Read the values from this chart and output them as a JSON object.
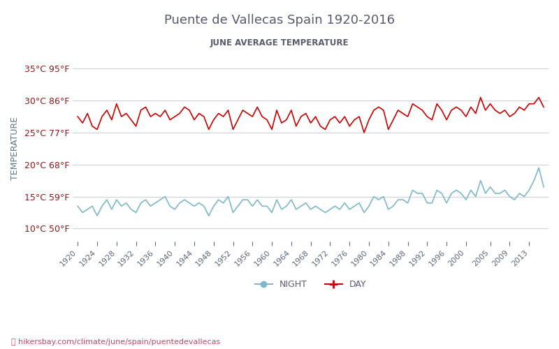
{
  "title": "Puente de Vallecas Spain 1920-2016",
  "subtitle": "JUNE AVERAGE TEMPERATURE",
  "ylabel": "TEMPERATURE",
  "footer": "hikersbay.com/climate/june/spain/puentedevallecas",
  "ylim": [
    8,
    37
  ],
  "yticks": [
    10,
    15,
    20,
    25,
    30,
    35
  ],
  "ytick_labels": [
    "10°C 50°F",
    "15°C 59°F",
    "20°C 68°F",
    "25°C 77°F",
    "30°C 86°F",
    "35°C 95°F"
  ],
  "years": [
    1920,
    1921,
    1922,
    1923,
    1924,
    1925,
    1926,
    1927,
    1928,
    1929,
    1930,
    1931,
    1932,
    1933,
    1934,
    1935,
    1936,
    1937,
    1938,
    1939,
    1940,
    1941,
    1942,
    1943,
    1944,
    1945,
    1946,
    1947,
    1948,
    1949,
    1950,
    1951,
    1952,
    1953,
    1954,
    1955,
    1956,
    1957,
    1958,
    1959,
    1960,
    1961,
    1962,
    1963,
    1964,
    1965,
    1966,
    1967,
    1968,
    1969,
    1970,
    1971,
    1972,
    1973,
    1974,
    1975,
    1976,
    1977,
    1978,
    1979,
    1980,
    1981,
    1982,
    1983,
    1984,
    1985,
    1986,
    1987,
    1988,
    1989,
    1990,
    1991,
    1992,
    1993,
    1994,
    1995,
    1996,
    1997,
    1998,
    1999,
    2000,
    2001,
    2002,
    2003,
    2004,
    2005,
    2006,
    2007,
    2008,
    2009,
    2010,
    2011,
    2012,
    2013,
    2014,
    2015,
    2016
  ],
  "day_temps": [
    27.5,
    26.5,
    28.0,
    26.0,
    25.5,
    27.5,
    28.5,
    27.0,
    29.5,
    27.5,
    28.0,
    27.0,
    26.0,
    28.5,
    29.0,
    27.5,
    28.0,
    27.5,
    28.5,
    27.0,
    27.5,
    28.0,
    29.0,
    28.5,
    27.0,
    28.0,
    27.5,
    25.5,
    27.0,
    28.0,
    27.5,
    28.5,
    25.5,
    27.0,
    28.5,
    28.0,
    27.5,
    29.0,
    27.5,
    27.0,
    25.5,
    28.5,
    26.5,
    27.0,
    28.5,
    26.0,
    27.5,
    28.0,
    26.5,
    27.5,
    26.0,
    25.5,
    27.0,
    27.5,
    26.5,
    27.5,
    26.0,
    27.0,
    27.5,
    25.0,
    27.0,
    28.5,
    29.0,
    28.5,
    25.5,
    27.0,
    28.5,
    28.0,
    27.5,
    29.5,
    29.0,
    28.5,
    27.5,
    27.0,
    29.5,
    28.5,
    27.0,
    28.5,
    29.0,
    28.5,
    27.5,
    29.0,
    28.0,
    30.5,
    28.5,
    29.5,
    28.5,
    28.0,
    28.5,
    27.5,
    28.0,
    29.0,
    28.5,
    29.5,
    29.5,
    30.5,
    29.0
  ],
  "night_temps": [
    13.5,
    12.5,
    13.0,
    13.5,
    12.0,
    13.5,
    14.5,
    13.0,
    14.5,
    13.5,
    14.0,
    13.0,
    12.5,
    14.0,
    14.5,
    13.5,
    14.0,
    14.5,
    15.0,
    13.5,
    13.0,
    14.0,
    14.5,
    14.0,
    13.5,
    14.0,
    13.5,
    12.0,
    13.5,
    14.5,
    14.0,
    15.0,
    12.5,
    13.5,
    14.5,
    14.5,
    13.5,
    14.5,
    13.5,
    13.5,
    12.5,
    14.5,
    13.0,
    13.5,
    14.5,
    13.0,
    13.5,
    14.0,
    13.0,
    13.5,
    13.0,
    12.5,
    13.0,
    13.5,
    13.0,
    14.0,
    13.0,
    13.5,
    14.0,
    12.5,
    13.5,
    15.0,
    14.5,
    15.0,
    13.0,
    13.5,
    14.5,
    14.5,
    14.0,
    16.0,
    15.5,
    15.5,
    14.0,
    14.0,
    16.0,
    15.5,
    14.0,
    15.5,
    16.0,
    15.5,
    14.5,
    16.0,
    15.0,
    17.5,
    15.5,
    16.5,
    15.5,
    15.5,
    16.0,
    15.0,
    14.5,
    15.5,
    15.0,
    16.0,
    17.5,
    19.5,
    16.5
  ],
  "day_color": "#cc0000",
  "night_color": "#7eb8c9",
  "title_color": "#5a5a6e",
  "subtitle_color": "#5a5a6e",
  "ytick_color": "#8b1a1a",
  "ylabel_color": "#5a7a8a",
  "xtick_color": "#5a6a7a",
  "grid_color": "#d0d0d8",
  "bg_color": "#ffffff",
  "footer_color": "#cc4466",
  "xtick_years": [
    1920,
    1924,
    1928,
    1932,
    1936,
    1940,
    1944,
    1948,
    1952,
    1956,
    1960,
    1964,
    1968,
    1972,
    1976,
    1980,
    1984,
    1988,
    1992,
    1996,
    2000,
    2005,
    2009,
    2013
  ]
}
